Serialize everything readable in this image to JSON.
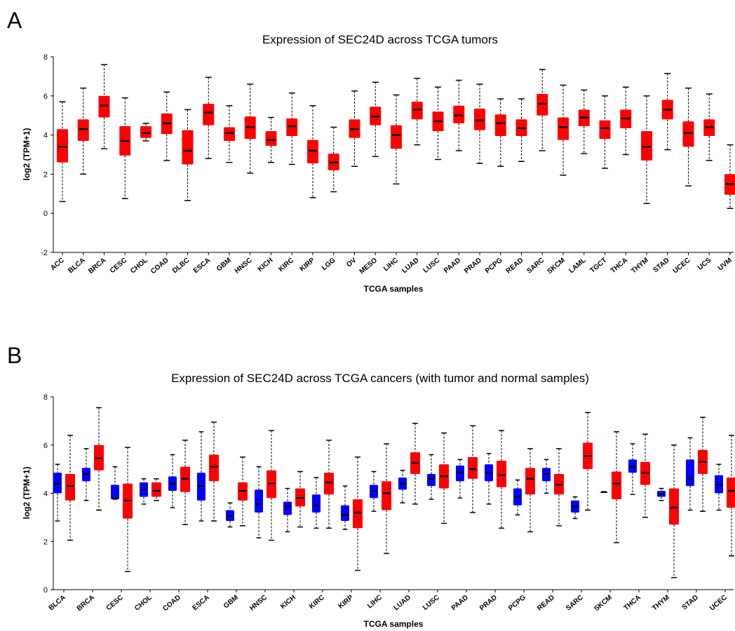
{
  "panels": {
    "A": {
      "letter": "A"
    },
    "B": {
      "letter": "B"
    }
  },
  "chart_data": [
    {
      "type": "box",
      "title": "Expression of SEC24D across TCGA tumors",
      "xlabel": "TCGA samples",
      "ylabel": "log2 (TPM+1)",
      "ylim": [
        -2,
        8
      ],
      "yticks": [
        "-2",
        "0",
        "2",
        "4",
        "6",
        "8"
      ],
      "grid": false,
      "colors": {
        "tumor": "#ff0000"
      },
      "categories": [
        "ACC",
        "BLCA",
        "BRCA",
        "CESC",
        "CHOL",
        "COAD",
        "DLBC",
        "ESCA",
        "GBM",
        "HNSC",
        "KICH",
        "KIRC",
        "KIRP",
        "LGG",
        "OV",
        "MESO",
        "LIHC",
        "LUAD",
        "LUSC",
        "PAAD",
        "PRAD",
        "PCPG",
        "READ",
        "SARC",
        "SKCM",
        "LAML",
        "TGCT",
        "THCA",
        "THYM",
        "STAD",
        "UCEC",
        "UCS",
        "UVM"
      ],
      "boxes": [
        {
          "min": 0.6,
          "q1": 2.6,
          "median": 3.4,
          "q3": 4.3,
          "max": 5.7
        },
        {
          "min": 2.0,
          "q1": 3.7,
          "median": 4.3,
          "q3": 4.8,
          "max": 6.4
        },
        {
          "min": 3.3,
          "q1": 4.9,
          "median": 5.5,
          "q3": 6.0,
          "max": 7.6
        },
        {
          "min": 0.75,
          "q1": 2.95,
          "median": 3.7,
          "q3": 4.45,
          "max": 5.9
        },
        {
          "min": 3.7,
          "q1": 3.85,
          "median": 4.1,
          "q3": 4.45,
          "max": 4.6
        },
        {
          "min": 2.7,
          "q1": 4.05,
          "median": 4.6,
          "q3": 5.1,
          "max": 6.2
        },
        {
          "min": 0.65,
          "q1": 2.5,
          "median": 3.2,
          "q3": 4.25,
          "max": 5.3
        },
        {
          "min": 2.8,
          "q1": 4.5,
          "median": 5.15,
          "q3": 5.6,
          "max": 6.95
        },
        {
          "min": 2.6,
          "q1": 3.7,
          "median": 4.1,
          "q3": 4.4,
          "max": 5.5
        },
        {
          "min": 2.05,
          "q1": 3.8,
          "median": 4.4,
          "q3": 4.95,
          "max": 6.6
        },
        {
          "min": 2.6,
          "q1": 3.45,
          "median": 3.75,
          "q3": 4.2,
          "max": 4.9
        },
        {
          "min": 2.5,
          "q1": 3.95,
          "median": 4.45,
          "q3": 4.85,
          "max": 6.15
        },
        {
          "min": 0.8,
          "q1": 2.55,
          "median": 3.2,
          "q3": 3.75,
          "max": 5.5
        },
        {
          "min": 1.1,
          "q1": 2.2,
          "median": 2.6,
          "q3": 3.05,
          "max": 4.4
        },
        {
          "min": 2.4,
          "q1": 3.85,
          "median": 4.3,
          "q3": 4.8,
          "max": 6.25
        },
        {
          "min": 2.9,
          "q1": 4.5,
          "median": 4.95,
          "q3": 5.45,
          "max": 6.7
        },
        {
          "min": 1.5,
          "q1": 3.3,
          "median": 4.0,
          "q3": 4.5,
          "max": 6.05
        },
        {
          "min": 3.5,
          "q1": 4.8,
          "median": 5.3,
          "q3": 5.7,
          "max": 6.9
        },
        {
          "min": 2.75,
          "q1": 4.2,
          "median": 4.7,
          "q3": 5.2,
          "max": 6.45
        },
        {
          "min": 3.2,
          "q1": 4.6,
          "median": 5.0,
          "q3": 5.5,
          "max": 6.8
        },
        {
          "min": 2.55,
          "q1": 4.25,
          "median": 4.75,
          "q3": 5.35,
          "max": 6.6
        },
        {
          "min": 2.4,
          "q1": 3.95,
          "median": 4.6,
          "q3": 5.05,
          "max": 5.85
        },
        {
          "min": 2.65,
          "q1": 3.95,
          "median": 4.35,
          "q3": 4.8,
          "max": 5.85
        },
        {
          "min": 3.2,
          "q1": 5.0,
          "median": 5.6,
          "q3": 6.1,
          "max": 7.35
        },
        {
          "min": 1.95,
          "q1": 3.75,
          "median": 4.4,
          "q3": 4.9,
          "max": 6.55
        },
        {
          "min": 3.05,
          "q1": 4.45,
          "median": 4.9,
          "q3": 5.3,
          "max": 6.3
        },
        {
          "min": 2.3,
          "q1": 3.8,
          "median": 4.35,
          "q3": 4.75,
          "max": 6.0
        },
        {
          "min": 3.0,
          "q1": 4.35,
          "median": 4.85,
          "q3": 5.3,
          "max": 6.45
        },
        {
          "min": 0.5,
          "q1": 2.7,
          "median": 3.4,
          "q3": 4.2,
          "max": 6.0
        },
        {
          "min": 3.25,
          "q1": 4.8,
          "median": 5.3,
          "q3": 5.8,
          "max": 7.15
        },
        {
          "min": 1.4,
          "q1": 3.4,
          "median": 4.1,
          "q3": 4.7,
          "max": 6.4
        },
        {
          "min": 2.7,
          "q1": 3.95,
          "median": 4.4,
          "q3": 4.8,
          "max": 6.1
        },
        {
          "min": 0.25,
          "q1": 0.95,
          "median": 1.5,
          "q3": 2.0,
          "max": 3.5
        }
      ]
    },
    {
      "type": "box",
      "title": "Expression of SEC24D across TCGA cancers (with tumor and normal samples)",
      "xlabel": "TCGA samples",
      "ylabel": "log2 (TPM+1)",
      "ylim": [
        0,
        8
      ],
      "yticks": [
        "0",
        "2",
        "4",
        "6",
        "8"
      ],
      "grid": false,
      "colors": {
        "normal": "#0000ff",
        "tumor": "#ff0000"
      },
      "categories": [
        "BLCA",
        "BRCA",
        "CESC",
        "CHOL",
        "COAD",
        "ESCA",
        "GBM",
        "HNSC",
        "KICH",
        "KIRC",
        "KIRP",
        "LIHC",
        "LUAD",
        "LUSC",
        "PAAD",
        "PRAD",
        "PCPG",
        "READ",
        "SARC",
        "SKCM",
        "THCA",
        "THYM",
        "STAD",
        "UCEC"
      ],
      "groups": [
        {
          "normal": {
            "min": 2.85,
            "q1": 4.0,
            "median": 4.4,
            "q3": 4.85,
            "max": 5.2
          },
          "tumor": {
            "min": 2.05,
            "q1": 3.7,
            "median": 4.3,
            "q3": 4.8,
            "max": 6.4
          }
        },
        {
          "normal": {
            "min": 3.7,
            "q1": 4.5,
            "median": 4.8,
            "q3": 5.05,
            "max": 5.85
          },
          "tumor": {
            "min": 3.3,
            "q1": 4.95,
            "median": 5.45,
            "q3": 6.0,
            "max": 7.55
          }
        },
        {
          "normal": {
            "min": 3.75,
            "q1": 3.75,
            "median": 3.8,
            "q3": 4.35,
            "max": 5.1
          },
          "tumor": {
            "min": 0.75,
            "q1": 2.95,
            "median": 3.7,
            "q3": 4.4,
            "max": 5.9
          }
        },
        {
          "normal": {
            "min": 3.55,
            "q1": 3.85,
            "median": 4.15,
            "q3": 4.45,
            "max": 4.6
          },
          "tumor": {
            "min": 3.7,
            "q1": 3.85,
            "median": 4.1,
            "q3": 4.45,
            "max": 4.6
          }
        },
        {
          "normal": {
            "min": 3.4,
            "q1": 4.1,
            "median": 4.4,
            "q3": 4.7,
            "max": 5.6
          },
          "tumor": {
            "min": 2.7,
            "q1": 4.05,
            "median": 4.6,
            "q3": 5.1,
            "max": 6.2
          }
        },
        {
          "normal": {
            "min": 2.85,
            "q1": 3.7,
            "median": 4.3,
            "q3": 4.85,
            "max": 6.55
          },
          "tumor": {
            "min": 2.85,
            "q1": 4.5,
            "median": 5.1,
            "q3": 5.6,
            "max": 6.95
          }
        },
        {
          "normal": {
            "min": 2.6,
            "q1": 2.85,
            "median": 3.05,
            "q3": 3.3,
            "max": 3.6
          },
          "tumor": {
            "min": 2.65,
            "q1": 3.7,
            "median": 4.1,
            "q3": 4.45,
            "max": 5.5
          }
        },
        {
          "normal": {
            "min": 2.15,
            "q1": 3.2,
            "median": 3.55,
            "q3": 4.15,
            "max": 5.1
          },
          "tumor": {
            "min": 2.05,
            "q1": 3.8,
            "median": 4.4,
            "q3": 4.95,
            "max": 6.6
          }
        },
        {
          "normal": {
            "min": 2.4,
            "q1": 3.1,
            "median": 3.45,
            "q3": 3.65,
            "max": 4.2
          },
          "tumor": {
            "min": 2.6,
            "q1": 3.45,
            "median": 3.8,
            "q3": 4.2,
            "max": 4.9
          }
        },
        {
          "normal": {
            "min": 2.55,
            "q1": 3.2,
            "median": 3.5,
            "q3": 3.95,
            "max": 4.65
          },
          "tumor": {
            "min": 2.55,
            "q1": 3.95,
            "median": 4.45,
            "q3": 4.85,
            "max": 6.2
          }
        },
        {
          "normal": {
            "min": 2.5,
            "q1": 2.85,
            "median": 3.1,
            "q3": 3.5,
            "max": 4.3
          },
          "tumor": {
            "min": 0.8,
            "q1": 2.55,
            "median": 3.2,
            "q3": 3.75,
            "max": 5.5
          }
        },
        {
          "normal": {
            "min": 3.25,
            "q1": 3.8,
            "median": 4.1,
            "q3": 4.35,
            "max": 4.9
          },
          "tumor": {
            "min": 1.5,
            "q1": 3.3,
            "median": 4.0,
            "q3": 4.5,
            "max": 6.05
          }
        },
        {
          "normal": {
            "min": 3.6,
            "q1": 4.15,
            "median": 4.4,
            "q3": 4.65,
            "max": 4.95
          },
          "tumor": {
            "min": 3.55,
            "q1": 4.8,
            "median": 5.25,
            "q3": 5.7,
            "max": 6.9
          }
        },
        {
          "normal": {
            "min": 3.75,
            "q1": 4.3,
            "median": 4.6,
            "q3": 4.8,
            "max": 5.6
          },
          "tumor": {
            "min": 2.75,
            "q1": 4.2,
            "median": 4.7,
            "q3": 5.2,
            "max": 6.5
          }
        },
        {
          "normal": {
            "min": 3.8,
            "q1": 4.5,
            "median": 4.85,
            "q3": 5.15,
            "max": 5.4
          },
          "tumor": {
            "min": 3.2,
            "q1": 4.6,
            "median": 5.0,
            "q3": 5.5,
            "max": 6.8
          }
        },
        {
          "normal": {
            "min": 3.55,
            "q1": 4.5,
            "median": 4.85,
            "q3": 5.2,
            "max": 5.65
          },
          "tumor": {
            "min": 2.55,
            "q1": 4.25,
            "median": 4.75,
            "q3": 5.35,
            "max": 6.6
          }
        },
        {
          "normal": {
            "min": 3.1,
            "q1": 3.5,
            "median": 3.85,
            "q3": 4.2,
            "max": 4.55
          },
          "tumor": {
            "min": 2.4,
            "q1": 3.95,
            "median": 4.6,
            "q3": 5.05,
            "max": 5.85
          }
        },
        {
          "normal": {
            "min": 4.0,
            "q1": 4.5,
            "median": 4.8,
            "q3": 5.05,
            "max": 5.4
          },
          "tumor": {
            "min": 2.65,
            "q1": 3.95,
            "median": 4.35,
            "q3": 4.8,
            "max": 5.85
          }
        },
        {
          "normal": {
            "min": 2.95,
            "q1": 3.2,
            "median": 3.45,
            "q3": 3.7,
            "max": 3.85
          },
          "tumor": {
            "min": 3.3,
            "q1": 5.0,
            "median": 5.55,
            "q3": 6.1,
            "max": 7.35
          }
        },
        {
          "normal": {
            "min": 4.05,
            "q1": 4.05,
            "median": 4.05,
            "q3": 4.05,
            "max": 4.05
          },
          "tumor": {
            "min": 1.95,
            "q1": 3.75,
            "median": 4.4,
            "q3": 4.9,
            "max": 6.55
          }
        },
        {
          "normal": {
            "min": 3.95,
            "q1": 4.85,
            "median": 5.1,
            "q3": 5.4,
            "max": 6.05
          },
          "tumor": {
            "min": 3.0,
            "q1": 4.35,
            "median": 4.85,
            "q3": 5.3,
            "max": 6.45
          }
        },
        {
          "normal": {
            "min": 3.7,
            "q1": 3.85,
            "median": 3.95,
            "q3": 4.1,
            "max": 4.2
          },
          "tumor": {
            "min": 0.5,
            "q1": 2.7,
            "median": 3.4,
            "q3": 4.2,
            "max": 6.0
          }
        },
        {
          "normal": {
            "min": 3.3,
            "q1": 4.3,
            "median": 4.6,
            "q3": 5.4,
            "max": 6.3
          },
          "tumor": {
            "min": 3.25,
            "q1": 4.8,
            "median": 5.3,
            "q3": 5.8,
            "max": 7.15
          }
        },
        {
          "normal": {
            "min": 3.3,
            "q1": 4.0,
            "median": 4.35,
            "q3": 4.75,
            "max": 5.2
          },
          "tumor": {
            "min": 1.4,
            "q1": 3.4,
            "median": 4.1,
            "q3": 4.65,
            "max": 6.4
          }
        }
      ]
    }
  ]
}
